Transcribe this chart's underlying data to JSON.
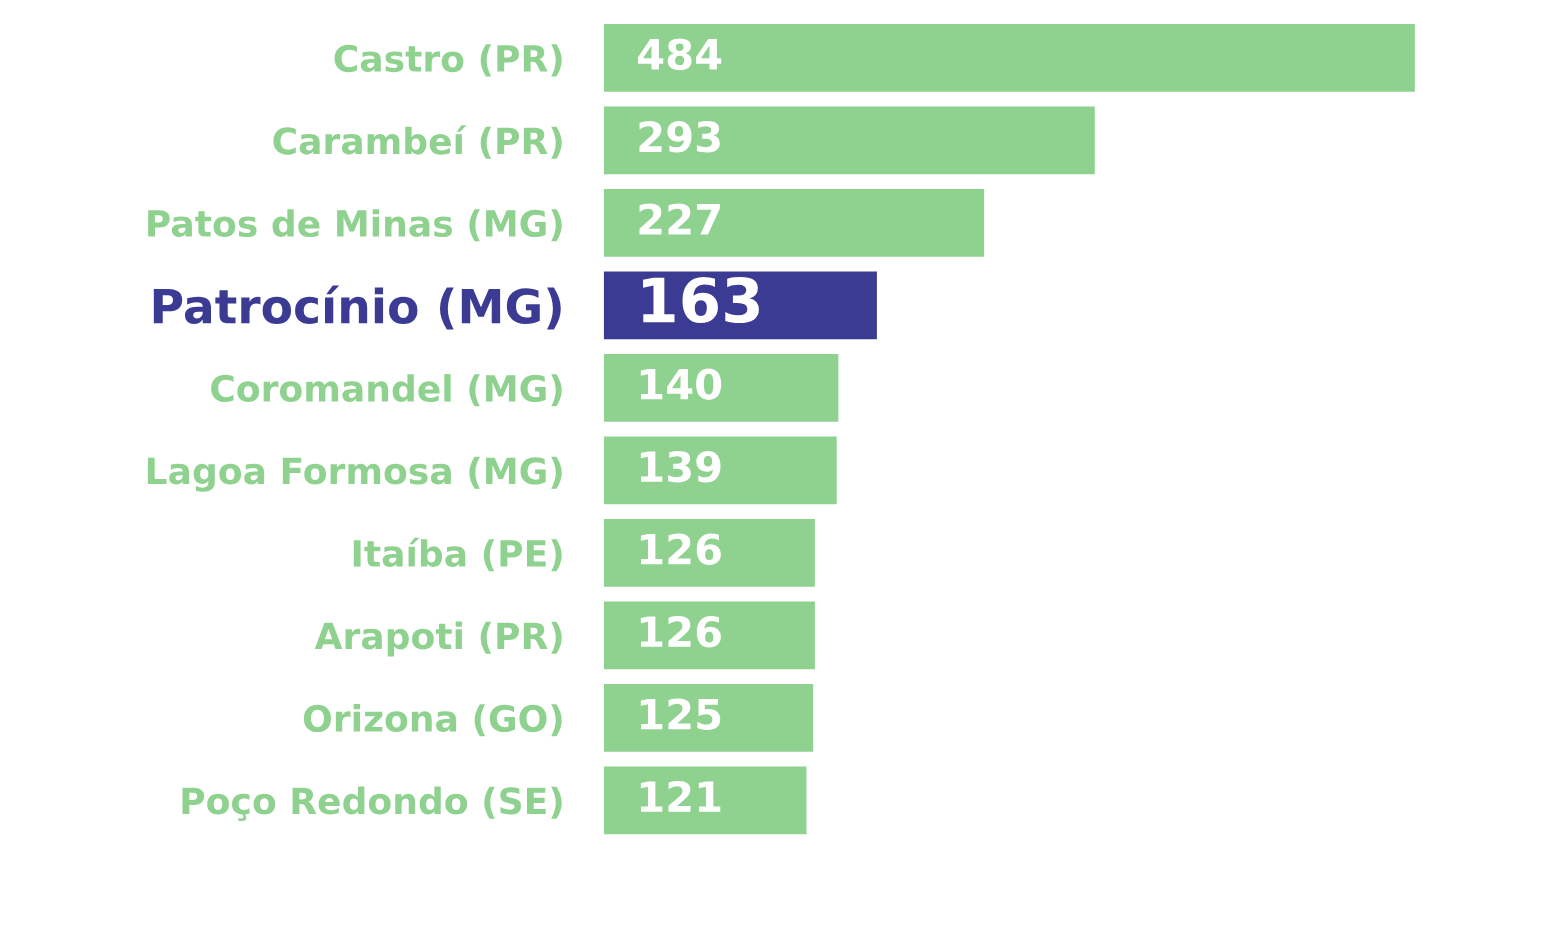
{
  "chart_data": {
    "type": "bar",
    "orientation": "horizontal",
    "categories": [
      "Castro (PR)",
      "Carambeí (PR)",
      "Patos de Minas (MG)",
      "Patrocínio (MG)",
      "Coromandel (MG)",
      "Lagoa Formosa (MG)",
      "Itaíba (PE)",
      "Arapoti (PR)",
      "Orizona (GO)",
      "Poço Redondo (SE)"
    ],
    "values": [
      484,
      293,
      227,
      163,
      140,
      139,
      126,
      126,
      125,
      121
    ],
    "colors": [
      "#8fd18f",
      "#8fd18f",
      "#8fd18f",
      "#3b3b93",
      "#8fd18f",
      "#8fd18f",
      "#8fd18f",
      "#8fd18f",
      "#8fd18f",
      "#8fd18f"
    ],
    "data_labels": true
  }
}
